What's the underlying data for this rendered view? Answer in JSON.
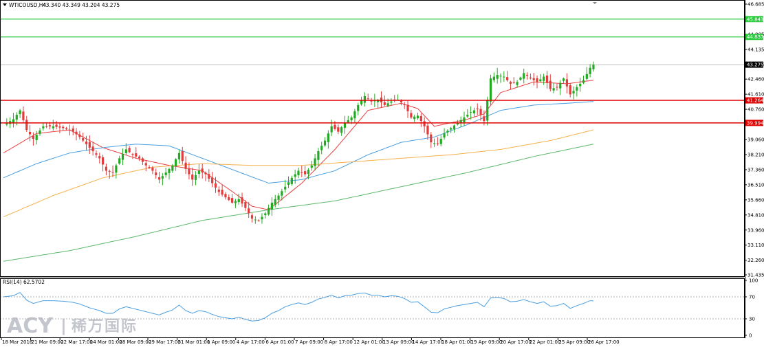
{
  "header": {
    "symbol": "WTICOUSD,H4",
    "ohlc": "43.340 43.349 43.204 43.275"
  },
  "rsi_header": "RSI(14) 62.5702",
  "watermark": {
    "brand": "ACY",
    "separator": "|",
    "cn": "稀万国际"
  },
  "colors": {
    "bull": "#22aa22",
    "bear": "#e23b3b",
    "ma_fast": "#e84040",
    "ma_mid": "#4a9ee0",
    "ma_slow": "#f5b04a",
    "ma_long": "#5cb86a",
    "hline_green": "#2ecc40",
    "hline_red": "#e00000",
    "rsi": "#4a9ee0"
  },
  "chart_data": [
    {
      "type": "candlestick",
      "title": "WTICOUSD,H4",
      "ylim": [
        31.435,
        46.685
      ],
      "y_ticks": [
        "46.685",
        "44.985",
        "44.135",
        "43.275",
        "42.460",
        "41.610",
        "40.760",
        "39.060",
        "38.210",
        "37.360",
        "36.510",
        "35.660",
        "34.810",
        "33.960",
        "33.110",
        "32.260",
        "31.435"
      ],
      "x_ticks": [
        "18 Mar 2016",
        "21 Mar 09:00",
        "22 Mar 17:00",
        "24 Mar 01:00",
        "28 Mar 09:00",
        "29 Mar 17:00",
        "31 Mar 01:00",
        "1 Apr 09:00",
        "4 Apr 17:00",
        "6 Apr 01:00",
        "7 Apr 09:00",
        "8 Apr 17:00",
        "12 Apr 01:00",
        "13 Apr 09:00",
        "14 Apr 17:00",
        "18 Apr 01:00",
        "19 Apr 09:00",
        "20 Apr 17:00",
        "22 Apr 01:00",
        "25 Apr 09:00",
        "26 Apr 17:00"
      ],
      "price_labels": [
        {
          "value": 45.843,
          "label": "45.843",
          "color": "#2ecc40"
        },
        {
          "value": 44.837,
          "label": "44.837",
          "color": "#2ecc40"
        },
        {
          "value": 43.275,
          "label": "43.275",
          "color": "#000000"
        },
        {
          "value": 41.264,
          "label": "41.264",
          "color": "#e00000"
        },
        {
          "value": 39.994,
          "label": "39.994",
          "color": "#e00000"
        }
      ],
      "horizontal_lines": [
        {
          "value": 45.843,
          "color": "green"
        },
        {
          "value": 44.837,
          "color": "green"
        },
        {
          "value": 41.264,
          "color": "red"
        },
        {
          "value": 39.994,
          "color": "red"
        }
      ],
      "current_price": 43.275,
      "close_keypoints": [
        [
          0,
          39.9
        ],
        [
          3,
          40.2
        ],
        [
          5,
          40.7
        ],
        [
          7,
          39.6
        ],
        [
          9,
          39.1
        ],
        [
          12,
          39.8
        ],
        [
          15,
          39.8
        ],
        [
          18,
          39.7
        ],
        [
          21,
          39.5
        ],
        [
          23,
          39.2
        ],
        [
          26,
          38.6
        ],
        [
          29,
          38.0
        ],
        [
          31,
          37.3
        ],
        [
          33,
          37.2
        ],
        [
          35,
          38.0
        ],
        [
          37,
          38.5
        ],
        [
          39,
          38.2
        ],
        [
          41,
          38.0
        ],
        [
          43,
          37.6
        ],
        [
          45,
          37.3
        ],
        [
          47,
          36.8
        ],
        [
          49,
          37.2
        ],
        [
          51,
          37.6
        ],
        [
          53,
          38.3
        ],
        [
          55,
          37.4
        ],
        [
          57,
          36.8
        ],
        [
          59,
          37.3
        ],
        [
          61,
          37.1
        ],
        [
          63,
          36.6
        ],
        [
          65,
          36.1
        ],
        [
          67,
          35.8
        ],
        [
          69,
          35.5
        ],
        [
          71,
          35.7
        ],
        [
          73,
          35.2
        ],
        [
          75,
          34.6
        ],
        [
          77,
          34.5
        ],
        [
          79,
          34.9
        ],
        [
          81,
          35.5
        ],
        [
          83,
          35.9
        ],
        [
          85,
          36.4
        ],
        [
          87,
          36.9
        ],
        [
          89,
          37.3
        ],
        [
          91,
          37.1
        ],
        [
          93,
          37.6
        ],
        [
          95,
          38.4
        ],
        [
          97,
          39.0
        ],
        [
          99,
          39.8
        ],
        [
          101,
          39.5
        ],
        [
          103,
          40.0
        ],
        [
          105,
          40.3
        ],
        [
          107,
          41.0
        ],
        [
          109,
          41.5
        ],
        [
          111,
          41.2
        ],
        [
          113,
          41.3
        ],
        [
          115,
          41.0
        ],
        [
          117,
          41.2
        ],
        [
          119,
          41.3
        ],
        [
          121,
          41.0
        ],
        [
          123,
          40.3
        ],
        [
          125,
          40.4
        ],
        [
          127,
          39.8
        ],
        [
          129,
          38.9
        ],
        [
          131,
          38.8
        ],
        [
          133,
          39.4
        ],
        [
          135,
          39.7
        ],
        [
          137,
          40.0
        ],
        [
          139,
          40.3
        ],
        [
          141,
          40.6
        ],
        [
          143,
          40.8
        ],
        [
          145,
          40.1
        ],
        [
          147,
          42.5
        ],
        [
          149,
          42.7
        ],
        [
          151,
          42.6
        ],
        [
          153,
          42.2
        ],
        [
          155,
          42.3
        ],
        [
          157,
          42.8
        ],
        [
          159,
          42.5
        ],
        [
          161,
          42.3
        ],
        [
          163,
          42.6
        ],
        [
          165,
          41.9
        ],
        [
          167,
          42.0
        ],
        [
          169,
          42.5
        ],
        [
          171,
          41.6
        ],
        [
          173,
          42.0
        ],
        [
          175,
          42.4
        ],
        [
          177,
          43.1
        ],
        [
          178,
          43.27
        ]
      ],
      "series": [
        {
          "name": "MA fast (red)",
          "keypoints": [
            [
              0,
              38.3
            ],
            [
              10,
              39.4
            ],
            [
              20,
              39.6
            ],
            [
              30,
              38.6
            ],
            [
              40,
              38.0
            ],
            [
              50,
              37.6
            ],
            [
              60,
              37.3
            ],
            [
              70,
              36.0
            ],
            [
              75,
              35.3
            ],
            [
              80,
              35.1
            ],
            [
              90,
              36.6
            ],
            [
              100,
              38.5
            ],
            [
              110,
              40.7
            ],
            [
              120,
              41.1
            ],
            [
              125,
              40.8
            ],
            [
              130,
              39.8
            ],
            [
              140,
              40.2
            ],
            [
              145,
              40.5
            ],
            [
              150,
              41.7
            ],
            [
              160,
              42.3
            ],
            [
              170,
              42.2
            ],
            [
              178,
              42.4
            ]
          ]
        },
        {
          "name": "MA mid (blue)",
          "keypoints": [
            [
              0,
              36.9
            ],
            [
              10,
              37.7
            ],
            [
              20,
              38.3
            ],
            [
              30,
              38.6
            ],
            [
              40,
              38.8
            ],
            [
              50,
              38.7
            ],
            [
              60,
              38.0
            ],
            [
              70,
              37.3
            ],
            [
              80,
              36.6
            ],
            [
              90,
              36.8
            ],
            [
              100,
              37.3
            ],
            [
              110,
              38.2
            ],
            [
              120,
              38.9
            ],
            [
              130,
              39.2
            ],
            [
              140,
              39.9
            ],
            [
              145,
              40.3
            ],
            [
              150,
              40.7
            ],
            [
              160,
              41.0
            ],
            [
              170,
              41.1
            ],
            [
              178,
              41.2
            ]
          ]
        },
        {
          "name": "MA slow (orange)",
          "keypoints": [
            [
              0,
              34.7
            ],
            [
              15,
              35.9
            ],
            [
              30,
              36.9
            ],
            [
              45,
              37.5
            ],
            [
              60,
              37.7
            ],
            [
              75,
              37.6
            ],
            [
              90,
              37.6
            ],
            [
              105,
              37.8
            ],
            [
              120,
              38.0
            ],
            [
              135,
              38.2
            ],
            [
              150,
              38.5
            ],
            [
              165,
              39.0
            ],
            [
              178,
              39.6
            ]
          ]
        },
        {
          "name": "MA long (green)",
          "keypoints": [
            [
              0,
              32.2
            ],
            [
              20,
              32.8
            ],
            [
              40,
              33.6
            ],
            [
              60,
              34.5
            ],
            [
              80,
              35.1
            ],
            [
              100,
              35.6
            ],
            [
              120,
              36.4
            ],
            [
              140,
              37.2
            ],
            [
              160,
              38.1
            ],
            [
              178,
              38.8
            ]
          ]
        }
      ]
    },
    {
      "type": "line",
      "title": "RSI(14) 62.5702",
      "ylim": [
        0,
        100
      ],
      "y_ticks": [
        "100",
        "70",
        "30",
        "0"
      ],
      "levels": [
        70,
        30
      ],
      "series": [
        {
          "name": "RSI(14)",
          "keypoints": [
            [
              0,
              70
            ],
            [
              3,
              72
            ],
            [
              5,
              78
            ],
            [
              7,
              64
            ],
            [
              9,
              58
            ],
            [
              12,
              63
            ],
            [
              15,
              63
            ],
            [
              18,
              62
            ],
            [
              21,
              60
            ],
            [
              23,
              57
            ],
            [
              26,
              50
            ],
            [
              29,
              45
            ],
            [
              31,
              40
            ],
            [
              33,
              40
            ],
            [
              35,
              48
            ],
            [
              37,
              52
            ],
            [
              39,
              49
            ],
            [
              41,
              46
            ],
            [
              43,
              43
            ],
            [
              45,
              40
            ],
            [
              47,
              37
            ],
            [
              49,
              42
            ],
            [
              51,
              46
            ],
            [
              53,
              55
            ],
            [
              55,
              45
            ],
            [
              57,
              40
            ],
            [
              59,
              45
            ],
            [
              61,
              43
            ],
            [
              63,
              38
            ],
            [
              65,
              34
            ],
            [
              67,
              32
            ],
            [
              69,
              30
            ],
            [
              71,
              33
            ],
            [
              73,
              29
            ],
            [
              75,
              26
            ],
            [
              77,
              27
            ],
            [
              79,
              32
            ],
            [
              81,
              40
            ],
            [
              83,
              45
            ],
            [
              85,
              52
            ],
            [
              87,
              56
            ],
            [
              89,
              59
            ],
            [
              91,
              56
            ],
            [
              93,
              60
            ],
            [
              95,
              66
            ],
            [
              97,
              69
            ],
            [
              99,
              73
            ],
            [
              101,
              68
            ],
            [
              103,
              72
            ],
            [
              105,
              73
            ],
            [
              107,
              76
            ],
            [
              109,
              77
            ],
            [
              111,
              73
            ],
            [
              113,
              73
            ],
            [
              115,
              70
            ],
            [
              117,
              72
            ],
            [
              119,
              71
            ],
            [
              121,
              67
            ],
            [
              123,
              60
            ],
            [
              125,
              61
            ],
            [
              127,
              52
            ],
            [
              129,
              42
            ],
            [
              131,
              41
            ],
            [
              133,
              48
            ],
            [
              135,
              51
            ],
            [
              137,
              54
            ],
            [
              139,
              56
            ],
            [
              141,
              58
            ],
            [
              143,
              60
            ],
            [
              145,
              52
            ],
            [
              147,
              68
            ],
            [
              149,
              69
            ],
            [
              151,
              67
            ],
            [
              153,
              61
            ],
            [
              155,
              62
            ],
            [
              157,
              65
            ],
            [
              159,
              61
            ],
            [
              161,
              58
            ],
            [
              163,
              61
            ],
            [
              165,
              53
            ],
            [
              167,
              54
            ],
            [
              169,
              58
            ],
            [
              171,
              49
            ],
            [
              173,
              54
            ],
            [
              175,
              58
            ],
            [
              177,
              63
            ],
            [
              178,
              62.57
            ]
          ]
        }
      ]
    }
  ]
}
